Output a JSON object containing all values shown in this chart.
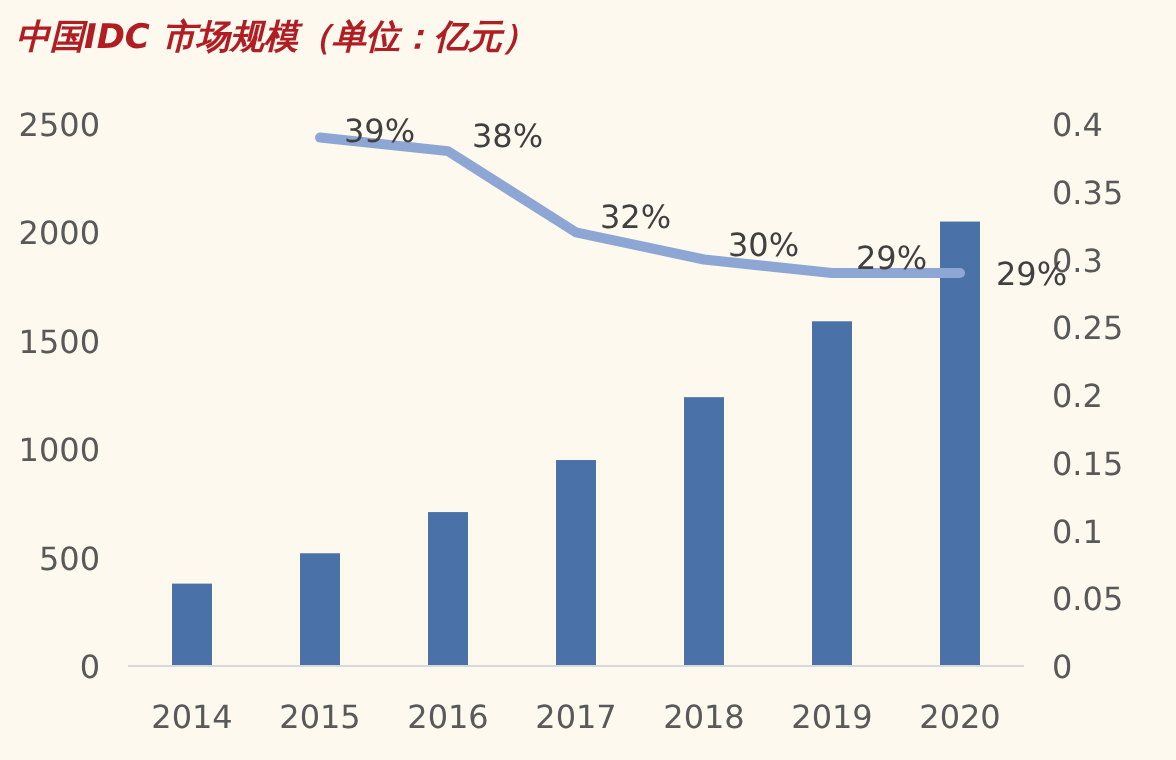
{
  "chart_data": {
    "type": "bar",
    "title": "中国IDC 市场规模（单位：亿元）",
    "categories": [
      "2014",
      "2015",
      "2016",
      "2017",
      "2018",
      "2019",
      "2020"
    ],
    "series": [
      {
        "color": "#4a72a8",
        "values": [
          380,
          520,
          710,
          950,
          1240,
          1590,
          2050
        ]
      },
      {
        "type": "line",
        "axis": "y2",
        "color": "#8ea6d4",
        "values": [
          null,
          0.39,
          0.38,
          0.32,
          0.3,
          0.29,
          0.29
        ],
        "value_labels": [
          null,
          "39%",
          "38%",
          "32%",
          "30%",
          "29%",
          "29%"
        ]
      }
    ],
    "ylim": [
      0,
      2500
    ],
    "yticks": [
      0,
      500,
      1000,
      1500,
      2000,
      2500
    ],
    "y2lim": [
      0,
      0.4
    ],
    "y2ticks": [
      0,
      0.05,
      0.1,
      0.15,
      0.2,
      0.25,
      0.3,
      0.35,
      0.4
    ],
    "grid": false,
    "marker": "none",
    "line_style": "solid"
  }
}
